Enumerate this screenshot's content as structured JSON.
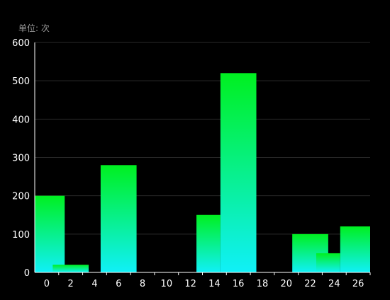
{
  "chart_data": {
    "type": "bar",
    "unit": {
      "label": "单位:",
      "value": "次"
    },
    "x_ticks": [
      "0",
      "2",
      "4",
      "6",
      "8",
      "10",
      "12",
      "14",
      "16",
      "18",
      "20",
      "22",
      "24",
      "26"
    ],
    "y_ticks": [
      "0",
      "100",
      "200",
      "300",
      "400",
      "500",
      "600"
    ],
    "ylim": [
      0,
      600
    ],
    "xlim": [
      -1,
      27
    ],
    "bars": [
      {
        "x0": -1,
        "x1": 1.5,
        "value": 200
      },
      {
        "x0": 0.5,
        "x1": 3.5,
        "value": 20
      },
      {
        "x0": 4.5,
        "x1": 7.5,
        "value": 280
      },
      {
        "x0": 12.5,
        "x1": 14.5,
        "value": 150
      },
      {
        "x0": 14.5,
        "x1": 17.5,
        "value": 520
      },
      {
        "x0": 20.5,
        "x1": 23.5,
        "value": 100
      },
      {
        "x0": 22.5,
        "x1": 24.5,
        "value": 50
      },
      {
        "x0": 24.5,
        "x1": 27,
        "value": 120
      }
    ],
    "grid": true,
    "colors": {
      "bar_top": "#00f020",
      "bar_bottom": "#10f0f8",
      "axis": "#ffffff",
      "grid": "#2a2a2a",
      "tick_text": "#ffffff",
      "unit_text": "#9a9a9a"
    }
  }
}
